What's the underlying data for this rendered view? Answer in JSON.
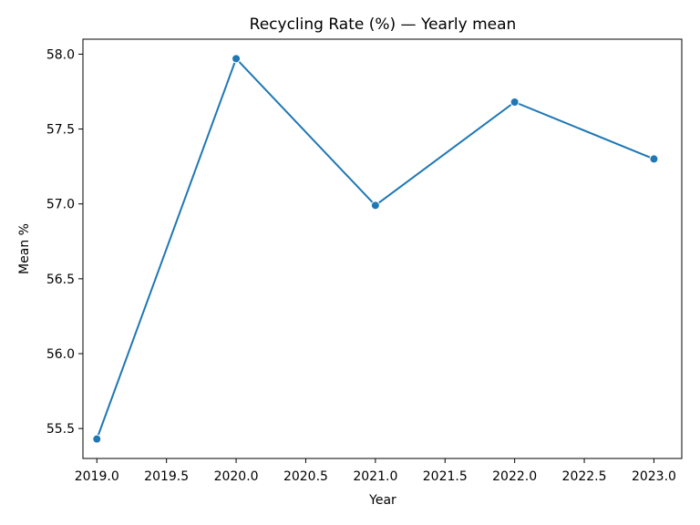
{
  "chart_data": {
    "type": "line",
    "title": "Recycling Rate (%) — Yearly mean",
    "xlabel": "Year",
    "ylabel": "Mean %",
    "x": [
      2019,
      2020,
      2021,
      2022,
      2023
    ],
    "series": [
      {
        "values": [
          55.43,
          57.97,
          56.99,
          57.68,
          57.3
        ],
        "color": "#1f77b4",
        "marker": "circle"
      }
    ],
    "xlim": [
      2018.9,
      2023.2
    ],
    "ylim": [
      55.3,
      58.1
    ],
    "xticks": [
      "2019.0",
      "2019.5",
      "2020.0",
      "2020.5",
      "2021.0",
      "2021.5",
      "2022.0",
      "2022.5",
      "2023.0"
    ],
    "yticks": [
      "55.5",
      "56.0",
      "56.5",
      "57.0",
      "57.5",
      "58.0"
    ],
    "grid": false,
    "legend": "none"
  }
}
